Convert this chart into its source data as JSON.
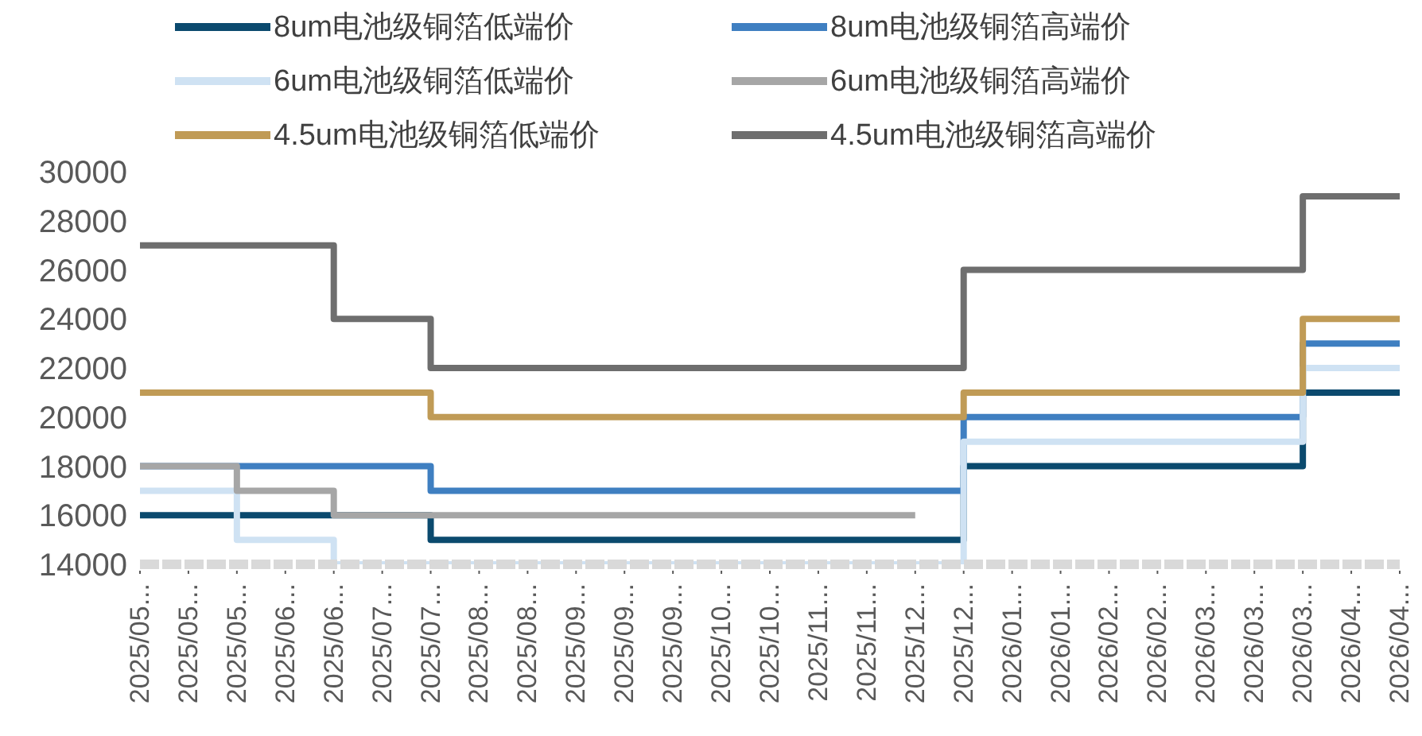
{
  "chart_data": {
    "type": "step",
    "categories": [
      "2025/05...",
      "2025/05...",
      "2025/05...",
      "2025/06...",
      "2025/06...",
      "2025/07...",
      "2025/07...",
      "2025/08...",
      "2025/08...",
      "2025/09...",
      "2025/09...",
      "2025/09...",
      "2025/10...",
      "2025/10...",
      "2025/11...",
      "2025/11...",
      "2025/12...",
      "2025/12...",
      "2026/01...",
      "2026/01...",
      "2026/02...",
      "2026/02...",
      "2026/03...",
      "2026/03...",
      "2026/03...",
      "2026/04...",
      "2026/04..."
    ],
    "series": [
      {
        "name": "8um电池级铜箔低端价",
        "color": "#0b4a6e",
        "values": [
          16000,
          16000,
          16000,
          16000,
          16000,
          16000,
          15000,
          15000,
          15000,
          15000,
          15000,
          15000,
          15000,
          15000,
          15000,
          15000,
          15000,
          18000,
          18000,
          18000,
          18000,
          18000,
          18000,
          18000,
          21000,
          21000,
          21000
        ]
      },
      {
        "name": "8um电池级铜箔高端价",
        "color": "#3f7fc1",
        "values": [
          18000,
          18000,
          18000,
          18000,
          18000,
          18000,
          17000,
          17000,
          17000,
          17000,
          17000,
          17000,
          17000,
          17000,
          17000,
          17000,
          17000,
          20000,
          20000,
          20000,
          20000,
          20000,
          20000,
          20000,
          23000,
          23000,
          23000
        ]
      },
      {
        "name": "6um电池级铜箔低端价",
        "color": "#cfe2f3",
        "values": [
          17000,
          17000,
          15000,
          15000,
          14000,
          14000,
          14000,
          14000,
          14000,
          14000,
          14000,
          14000,
          14000,
          14000,
          14000,
          14000,
          14000,
          19000,
          19000,
          19000,
          19000,
          19000,
          19000,
          19000,
          22000,
          22000,
          22000
        ]
      },
      {
        "name": "6um电池级铜箔高端价",
        "color": "#a6a6a6",
        "values": [
          18000,
          18000,
          17000,
          17000,
          16000,
          16000,
          16000,
          16000,
          16000,
          16000,
          16000,
          16000,
          16000,
          16000,
          16000,
          16000,
          16000,
          null,
          null,
          null,
          null,
          null,
          null,
          null,
          null,
          null,
          null
        ]
      },
      {
        "name": "4.5um电池级铜箔低端价",
        "color": "#c09b56",
        "values": [
          21000,
          21000,
          21000,
          21000,
          21000,
          21000,
          20000,
          20000,
          20000,
          20000,
          20000,
          20000,
          20000,
          20000,
          20000,
          20000,
          20000,
          21000,
          21000,
          21000,
          21000,
          21000,
          21000,
          21000,
          24000,
          24000,
          24000
        ]
      },
      {
        "name": "4.5um电池级铜箔高端价",
        "color": "#6e6e6e",
        "values": [
          27000,
          27000,
          27000,
          27000,
          24000,
          24000,
          22000,
          22000,
          22000,
          22000,
          22000,
          22000,
          22000,
          22000,
          22000,
          22000,
          22000,
          26000,
          26000,
          26000,
          26000,
          26000,
          26000,
          26000,
          29000,
          29000,
          29000
        ]
      }
    ],
    "ylim": [
      14000,
      30000
    ],
    "yticks": [
      14000,
      16000,
      18000,
      20000,
      22000,
      24000,
      26000,
      28000,
      30000
    ],
    "grid": false,
    "legend": "top",
    "marker": "none",
    "line_style": "solid"
  }
}
